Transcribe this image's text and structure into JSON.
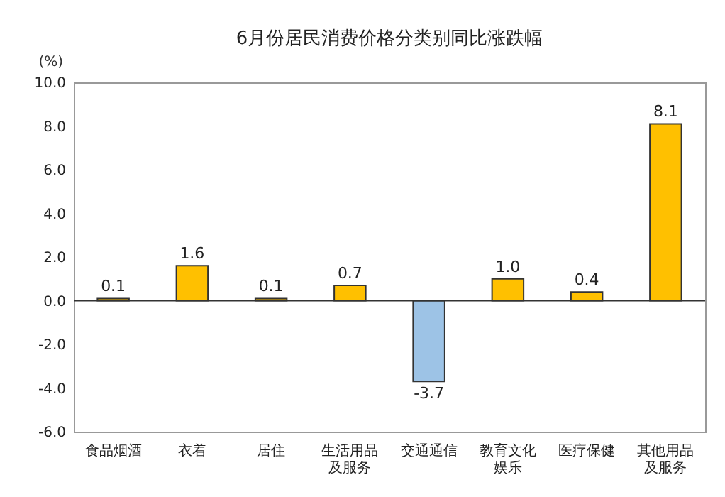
{
  "chart_data": {
    "type": "bar",
    "title": "6月份居民消费价格分类别同比涨跌幅",
    "ylabel": "(%)",
    "categories": [
      "食品烟酒",
      "衣着",
      "居住",
      "生活用品及服务",
      "交通通信",
      "教育文化娱乐",
      "医疗保健",
      "其他用品及服务"
    ],
    "values": [
      0.1,
      1.6,
      0.1,
      0.7,
      -3.7,
      1.0,
      0.4,
      8.1
    ],
    "value_labels": [
      "0.1",
      "1.6",
      "0.1",
      "0.7",
      "-3.7",
      "1.0",
      "0.4",
      "8.1"
    ],
    "colors": [
      "#ffc000",
      "#ffc000",
      "#ffc000",
      "#ffc000",
      "#9dc3e6",
      "#ffc000",
      "#ffc000",
      "#ffc000"
    ],
    "ylim": [
      -6,
      10
    ],
    "yticks": [
      {
        "value": -6,
        "label": "-6.0"
      },
      {
        "value": -4,
        "label": "-4.0"
      },
      {
        "value": -2,
        "label": "-2.0"
      },
      {
        "value": 0,
        "label": "0.0"
      },
      {
        "value": 2,
        "label": "2.0"
      },
      {
        "value": 4,
        "label": "4.0"
      },
      {
        "value": 6,
        "label": "6.0"
      },
      {
        "value": 8,
        "label": "8.0"
      },
      {
        "value": 10,
        "label": "10.0"
      }
    ]
  }
}
